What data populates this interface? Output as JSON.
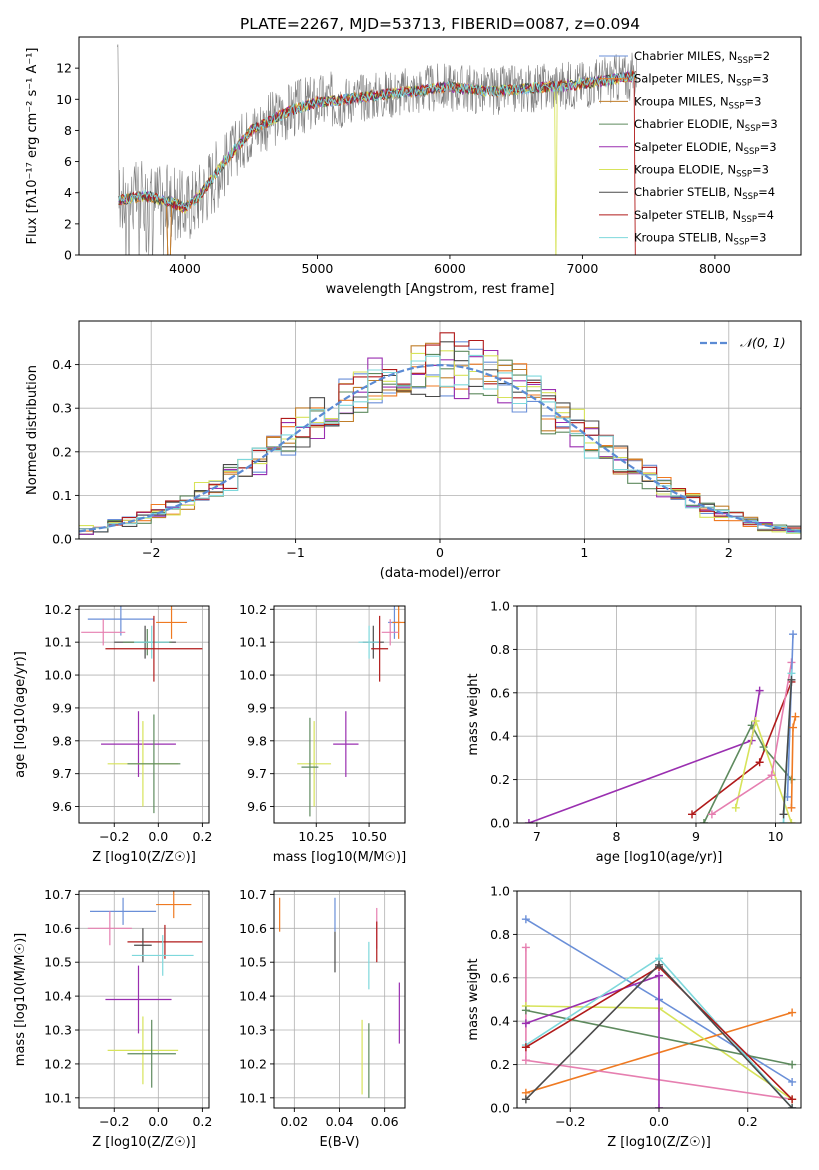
{
  "figure_title": "PLATE=2267, MJD=53713, FIBERID=0087, z=0.094",
  "colors": {
    "Chabrier MILES": "#6a8fd8",
    "Salpeter MILES": "#ef7a22",
    "Kroupa MILES": "#c07e2a",
    "Chabrier ELODIE": "#5e8a5e",
    "Salpeter ELODIE": "#9a2fb0",
    "Kroupa ELODIE": "#d7e35a",
    "Chabrier STELIB": "#4a4a4a",
    "Salpeter STELIB": "#b01a1a",
    "Kroupa STELIB": "#7ed8dc",
    "pink": "#e67fb0",
    "data_spectrum": "#7f7f7f",
    "gaussian": "#5b8bd4"
  },
  "chart_data": [
    {
      "id": "spectrum",
      "type": "line",
      "title": "PLATE=2267, MJD=53713, FIBERID=0087, z=0.094",
      "xlabel": "wavelength [Angstrom, rest frame]",
      "ylabel": "Flux [fλ10⁻¹⁷ erg cm⁻² s⁻¹ A⁻¹]",
      "xlim": [
        3200,
        8650
      ],
      "ylim": [
        0,
        14
      ],
      "xticks": [
        "4000",
        "5000",
        "6000",
        "7000",
        "8000"
      ],
      "yticks": [
        "0",
        "2",
        "4",
        "6",
        "8",
        "10",
        "12"
      ],
      "legend_position": "top-right",
      "legend": [
        "Chabrier MILES, N_SSP=2",
        "Salpeter MILES, N_SSP=3",
        "Kroupa MILES, N_SSP=3",
        "Chabrier ELODIE, N_SSP=3",
        "Salpeter ELODIE, N_SSP=3",
        "Kroupa ELODIE, N_SSP=3",
        "Chabrier STELIB, N_SSP=4",
        "Salpeter STELIB, N_SSP=4",
        "Kroupa STELIB, N_SSP=3"
      ],
      "legend_display": [
        [
          "Chabrier MILES, N",
          "SSP",
          "=2"
        ],
        [
          "Salpeter MILES, N",
          "SSP",
          "=3"
        ],
        [
          "Kroupa MILES, N",
          "SSP",
          "=3"
        ],
        [
          "Chabrier ELODIE, N",
          "SSP",
          "=3"
        ],
        [
          "Salpeter ELODIE, N",
          "SSP",
          "=3"
        ],
        [
          "Kroupa ELODIE, N",
          "SSP",
          "=3"
        ],
        [
          "Chabrier STELIB, N",
          "SSP",
          "=4"
        ],
        [
          "Salpeter STELIB, N",
          "SSP",
          "=4"
        ],
        [
          "Kroupa STELIB, N",
          "SSP",
          "=3"
        ]
      ],
      "continuum": {
        "x": [
          3500,
          3700,
          3900,
          4000,
          4100,
          4300,
          4500,
          4800,
          5000,
          5200,
          5500,
          5800,
          6000,
          6300,
          6600,
          6900,
          7100,
          7300,
          7400
        ],
        "y": [
          3.5,
          3.8,
          3.4,
          3.0,
          3.7,
          6.0,
          8.0,
          9.3,
          9.8,
          10.0,
          10.3,
          10.6,
          10.8,
          10.5,
          10.7,
          10.9,
          11.1,
          11.4,
          11.5
        ]
      }
    },
    {
      "id": "residuals",
      "type": "step-histogram",
      "xlabel": "(data-model)/error",
      "ylabel": "Normed distribution",
      "xlim": [
        -2.5,
        2.5
      ],
      "ylim": [
        0,
        0.5
      ],
      "xticks": [
        "−2",
        "−1",
        "0",
        "1",
        "2"
      ],
      "yticks": [
        "0.0",
        "0.1",
        "0.2",
        "0.3",
        "0.4"
      ],
      "legend_label": "𝒩(0, 1)",
      "legend_position": "top-right",
      "bin_width": 0.1
    },
    {
      "id": "age_vs_Z",
      "type": "errorbar",
      "xlabel": "Z [log10(Z/Z☉)]",
      "ylabel": "age [log10(age/yr)]",
      "xlim": [
        -0.36,
        0.23
      ],
      "ylim": [
        9.55,
        10.21
      ],
      "xticks": [
        "−0.2",
        "0.0",
        "0.2"
      ],
      "yticks": [
        "9.6",
        "9.7",
        "9.8",
        "9.9",
        "10.0",
        "10.1",
        "10.2"
      ],
      "points": [
        {
          "model": "Chabrier MILES",
          "x": -0.17,
          "y": 10.17,
          "xerr": 0.15,
          "yerr": 0.05
        },
        {
          "model": "Salpeter MILES",
          "x": 0.06,
          "y": 10.16,
          "xerr": 0.07,
          "yerr": 0.05
        },
        {
          "model": "pink",
          "x": -0.25,
          "y": 10.13,
          "xerr": 0.1,
          "yerr": 0.04
        },
        {
          "model": "Chabrier STELIB",
          "x": -0.06,
          "y": 10.1,
          "xerr": 0.14,
          "yerr": 0.05
        },
        {
          "model": "Chabrier ELODIE",
          "x": -0.05,
          "y": 10.1,
          "xerr": 0.11,
          "yerr": 0.04
        },
        {
          "model": "Kroupa STELIB",
          "x": -0.03,
          "y": 10.1,
          "xerr": 0.08,
          "yerr": 0.05
        },
        {
          "model": "Salpeter STELIB",
          "x": -0.02,
          "y": 10.08,
          "xerr": 0.22,
          "yerr": 0.1
        },
        {
          "model": "Salpeter ELODIE",
          "x": -0.09,
          "y": 9.79,
          "xerr": 0.17,
          "yerr": 0.1
        },
        {
          "model": "Kroupa ELODIE",
          "x": -0.07,
          "y": 9.73,
          "xerr": 0.16,
          "yerr": 0.13
        },
        {
          "model": "Chabrier ELODIE",
          "x": -0.02,
          "y": 9.73,
          "xerr": 0.12,
          "yerr": 0.15
        }
      ]
    },
    {
      "id": "age_vs_mass",
      "type": "errorbar",
      "xlabel": "mass [log10(M/M☉)]",
      "xlim": [
        10.05,
        10.67
      ],
      "ylim": [
        9.55,
        10.21
      ],
      "xticks": [
        "10.25",
        "10.50"
      ],
      "yticks": [
        "9.6",
        "9.7",
        "9.8",
        "9.9",
        "10.0",
        "10.1",
        "10.2"
      ],
      "points": [
        {
          "model": "Chabrier MILES",
          "x": 10.62,
          "y": 10.16,
          "xerr": 0.03,
          "yerr": 0.05
        },
        {
          "model": "Salpeter MILES",
          "x": 10.64,
          "y": 10.16,
          "xerr": 0.03,
          "yerr": 0.05
        },
        {
          "model": "pink",
          "x": 10.6,
          "y": 10.13,
          "xerr": 0.04,
          "yerr": 0.04
        },
        {
          "model": "Chabrier STELIB",
          "x": 10.52,
          "y": 10.1,
          "xerr": 0.05,
          "yerr": 0.05
        },
        {
          "model": "Kroupa STELIB",
          "x": 10.5,
          "y": 10.1,
          "xerr": 0.05,
          "yerr": 0.05
        },
        {
          "model": "Salpeter STELIB",
          "x": 10.55,
          "y": 10.08,
          "xerr": 0.04,
          "yerr": 0.1
        },
        {
          "model": "Salpeter ELODIE",
          "x": 10.39,
          "y": 9.79,
          "xerr": 0.06,
          "yerr": 0.1
        },
        {
          "model": "Kroupa ELODIE",
          "x": 10.24,
          "y": 9.73,
          "xerr": 0.08,
          "yerr": 0.13
        },
        {
          "model": "Chabrier ELODIE",
          "x": 10.22,
          "y": 9.72,
          "xerr": 0.04,
          "yerr": 0.15
        }
      ]
    },
    {
      "id": "massweight_vs_age",
      "type": "line",
      "xlabel": "age [log10(age/yr)]",
      "ylabel": "mass weight",
      "xlim": [
        6.75,
        10.32
      ],
      "ylim": [
        0,
        1
      ],
      "xticks": [
        "7",
        "8",
        "9",
        "10"
      ],
      "yticks": [
        "0.0",
        "0.2",
        "0.4",
        "0.6",
        "0.8",
        "1.0"
      ],
      "series": [
        {
          "model": "Salpeter ELODIE",
          "x": [
            6.9,
            9.7,
            9.8
          ],
          "y": [
            0.0,
            0.38,
            0.61
          ]
        },
        {
          "model": "Salpeter STELIB",
          "x": [
            8.95,
            9.8,
            10.2
          ],
          "y": [
            0.04,
            0.28,
            0.65
          ]
        },
        {
          "model": "Chabrier ELODIE",
          "x": [
            9.1,
            9.7,
            9.85,
            10.2
          ],
          "y": [
            0.0,
            0.45,
            0.35,
            0.2
          ]
        },
        {
          "model": "Kroupa ELODIE",
          "x": [
            9.5,
            9.75,
            10.2
          ],
          "y": [
            0.07,
            0.47,
            0.0
          ]
        },
        {
          "model": "pink",
          "x": [
            9.2,
            9.95,
            10.2
          ],
          "y": [
            0.04,
            0.22,
            0.74
          ]
        },
        {
          "model": "Chabrier MILES",
          "x": [
            10.15,
            10.22
          ],
          "y": [
            0.12,
            0.87
          ]
        },
        {
          "model": "Salpeter MILES",
          "x": [
            10.2,
            10.22,
            10.25
          ],
          "y": [
            0.07,
            0.44,
            0.49
          ]
        },
        {
          "model": "Kroupa STELIB",
          "x": [
            10.1,
            10.2
          ],
          "y": [
            0.0,
            0.69
          ]
        },
        {
          "model": "Chabrier STELIB",
          "x": [
            10.1,
            10.2
          ],
          "y": [
            0.04,
            0.66
          ]
        }
      ]
    },
    {
      "id": "mass_vs_Z",
      "type": "errorbar",
      "xlabel": "Z [log10(Z/Z☉)]",
      "ylabel": "mass [log10(M/M☉)]",
      "xlim": [
        -0.36,
        0.23
      ],
      "ylim": [
        10.07,
        10.71
      ],
      "xticks": [
        "−0.2",
        "0.0",
        "0.2"
      ],
      "yticks": [
        "10.1",
        "10.2",
        "10.3",
        "10.4",
        "10.5",
        "10.6",
        "10.7"
      ],
      "points": [
        {
          "model": "Salpeter MILES",
          "x": 0.07,
          "y": 10.67,
          "xerr": 0.08,
          "yerr": 0.04
        },
        {
          "model": "Chabrier MILES",
          "x": -0.16,
          "y": 10.65,
          "xerr": 0.15,
          "yerr": 0.04
        },
        {
          "model": "pink",
          "x": -0.22,
          "y": 10.6,
          "xerr": 0.1,
          "yerr": 0.05
        },
        {
          "model": "Salpeter STELIB",
          "x": 0.03,
          "y": 10.56,
          "xerr": 0.17,
          "yerr": 0.05
        },
        {
          "model": "Chabrier STELIB",
          "x": -0.07,
          "y": 10.55,
          "xerr": 0.04,
          "yerr": 0.05
        },
        {
          "model": "Kroupa STELIB",
          "x": 0.02,
          "y": 10.52,
          "xerr": 0.14,
          "yerr": 0.06
        },
        {
          "model": "Salpeter ELODIE",
          "x": -0.09,
          "y": 10.39,
          "xerr": 0.15,
          "yerr": 0.1
        },
        {
          "model": "Kroupa ELODIE",
          "x": -0.07,
          "y": 10.24,
          "xerr": 0.16,
          "yerr": 0.1
        },
        {
          "model": "Chabrier ELODIE",
          "x": -0.03,
          "y": 10.23,
          "xerr": 0.11,
          "yerr": 0.1
        }
      ]
    },
    {
      "id": "mass_vs_EBV",
      "type": "errorbar",
      "xlabel": "E(B-V)",
      "xlim": [
        0.011,
        0.069
      ],
      "ylim": [
        10.07,
        10.71
      ],
      "xticks": [
        "0.02",
        "0.04",
        "0.06"
      ],
      "yticks": [
        "10.1",
        "10.2",
        "10.3",
        "10.4",
        "10.5",
        "10.6",
        "10.7"
      ],
      "points": [
        {
          "model": "Salpeter MILES",
          "x": 0.0135,
          "y": 10.64,
          "xerr": 0,
          "yerr": 0.05
        },
        {
          "model": "Chabrier MILES",
          "x": 0.038,
          "y": 10.64,
          "xerr": 0,
          "yerr": 0.05
        },
        {
          "model": "pink",
          "x": 0.0565,
          "y": 10.6,
          "xerr": 0,
          "yerr": 0.06
        },
        {
          "model": "Chabrier STELIB",
          "x": 0.038,
          "y": 10.53,
          "xerr": 0,
          "yerr": 0.06
        },
        {
          "model": "Salpeter STELIB",
          "x": 0.0565,
          "y": 10.56,
          "xerr": 0,
          "yerr": 0.06
        },
        {
          "model": "Kroupa STELIB",
          "x": 0.053,
          "y": 10.49,
          "xerr": 0,
          "yerr": 0.07
        },
        {
          "model": "Salpeter ELODIE",
          "x": 0.0665,
          "y": 10.35,
          "xerr": 0,
          "yerr": 0.09
        },
        {
          "model": "Kroupa ELODIE",
          "x": 0.05,
          "y": 10.22,
          "xerr": 0,
          "yerr": 0.11
        },
        {
          "model": "Chabrier ELODIE",
          "x": 0.053,
          "y": 10.21,
          "xerr": 0,
          "yerr": 0.11
        }
      ]
    },
    {
      "id": "massweight_vs_Z",
      "type": "line",
      "xlabel": "Z [log10(Z/Z☉)]",
      "ylabel": "mass weight",
      "xlim": [
        -0.32,
        0.32
      ],
      "ylim": [
        0,
        1
      ],
      "xticks": [
        "−0.2",
        "0.0",
        "0.2"
      ],
      "yticks": [
        "0.0",
        "0.2",
        "0.4",
        "0.6",
        "0.8",
        "1.0"
      ],
      "series": [
        {
          "model": "Chabrier MILES",
          "x": [
            -0.3,
            0.0,
            0.3
          ],
          "y": [
            0.87,
            0.5,
            0.12
          ]
        },
        {
          "model": "Salpeter MILES",
          "x": [
            -0.3,
            0.3
          ],
          "y": [
            0.07,
            0.44
          ]
        },
        {
          "model": "pink",
          "x": [
            -0.3,
            -0.3,
            0.3
          ],
          "y": [
            0.74,
            0.22,
            0.04
          ]
        },
        {
          "model": "Kroupa ELODIE",
          "x": [
            -0.3,
            0.0,
            0.3
          ],
          "y": [
            0.47,
            0.46,
            0.04
          ]
        },
        {
          "model": "Chabrier ELODIE",
          "x": [
            -0.3,
            0.3
          ],
          "y": [
            0.45,
            0.2
          ]
        },
        {
          "model": "Salpeter ELODIE",
          "x": [
            -0.3,
            0.0,
            0.0
          ],
          "y": [
            0.39,
            0.61,
            0.0
          ]
        },
        {
          "model": "Kroupa STELIB",
          "x": [
            -0.3,
            0.0,
            0.3
          ],
          "y": [
            0.29,
            0.69,
            0.0
          ]
        },
        {
          "model": "Salpeter STELIB",
          "x": [
            -0.3,
            0.0,
            0.3
          ],
          "y": [
            0.28,
            0.65,
            0.04
          ]
        },
        {
          "model": "Chabrier STELIB",
          "x": [
            -0.3,
            0.0,
            0.3
          ],
          "y": [
            0.04,
            0.66,
            0.0
          ]
        }
      ]
    }
  ]
}
